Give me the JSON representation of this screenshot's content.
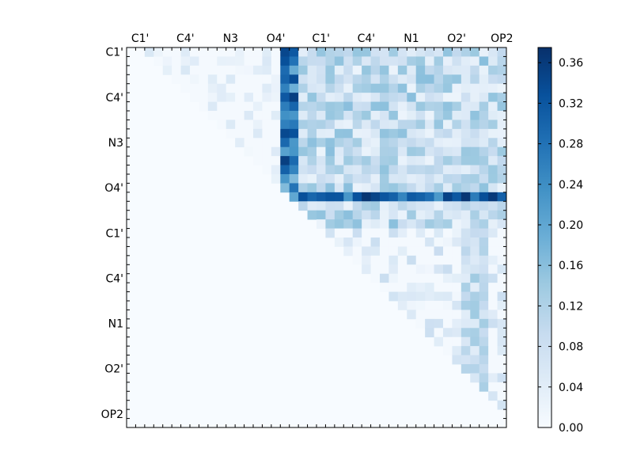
{
  "chart_data": {
    "type": "heatmap",
    "title": "",
    "xlabel": "",
    "ylabel": "",
    "n": 42,
    "x_tick_labels": [
      "C1'",
      "C4'",
      "N3",
      "O4'",
      "C1'",
      "C4'",
      "N1",
      "O2'",
      "OP2"
    ],
    "x_tick_index": [
      1,
      6,
      11,
      16,
      21,
      26,
      31,
      36,
      41
    ],
    "y_tick_labels": [
      "C1'",
      "C4'",
      "N3",
      "O4'",
      "C1'",
      "C4'",
      "N1",
      "O2'",
      "OP2"
    ],
    "y_tick_index": [
      0,
      5,
      10,
      15,
      20,
      25,
      30,
      35,
      40
    ],
    "colorbar": {
      "min": 0.0,
      "max": 0.375,
      "ticks": [
        "0.00",
        "0.04",
        "0.08",
        "0.12",
        "0.16",
        "0.20",
        "0.24",
        "0.28",
        "0.32",
        "0.36"
      ],
      "colors": [
        "#f7fbff",
        "#deebf7",
        "#c6dbef",
        "#9ecae1",
        "#6baed6",
        "#4292c6",
        "#2171b5",
        "#08519c",
        "#08306b"
      ]
    },
    "colormap": "Blues",
    "upper_triangle_only": true
  }
}
